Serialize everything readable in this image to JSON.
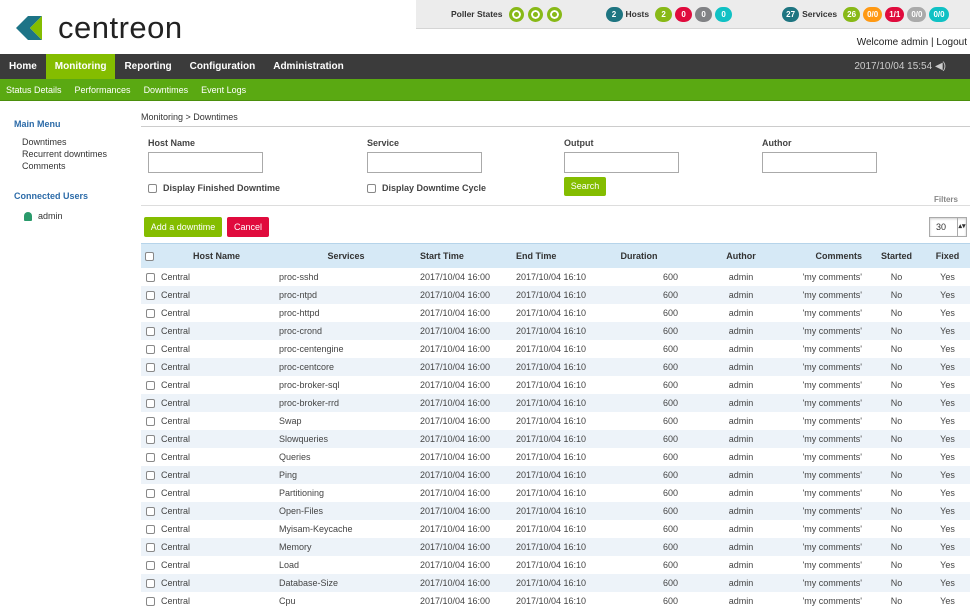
{
  "header": {
    "logo": "centreon",
    "poller_states": "Poller States",
    "hosts": {
      "total": 2,
      "label": "Hosts",
      "states": [
        2,
        0,
        0,
        0
      ]
    },
    "services": {
      "total": 27,
      "label": "Services",
      "states": [
        26,
        "0/0",
        "1/1",
        "0/0",
        "0/0"
      ]
    },
    "welcome": "Welcome admin",
    "logout": "Logout",
    "datetime": "2017/10/04 15:54"
  },
  "nav": {
    "items": [
      "Home",
      "Monitoring",
      "Reporting",
      "Configuration",
      "Administration"
    ],
    "active": 1,
    "subitems": [
      "Status Details",
      "Performances",
      "Downtimes",
      "Event Logs"
    ]
  },
  "sidebar": {
    "main_menu": "Main Menu",
    "items": [
      "Downtimes",
      "Recurrent downtimes",
      "Comments"
    ],
    "connected_users": "Connected Users",
    "users": [
      "admin"
    ]
  },
  "breadcrumb": "Monitoring > Downtimes",
  "filters": {
    "fields": [
      "Host Name",
      "Service",
      "Output",
      "Author"
    ],
    "checkboxes": [
      "Display Finished Downtime",
      "Display Downtime Cycle"
    ],
    "search": "Search",
    "title": "Filters"
  },
  "actions": {
    "add": "Add a downtime",
    "cancel": "Cancel",
    "page_size": 30
  },
  "table": {
    "columns": [
      "Host Name",
      "Services",
      "Start Time",
      "End Time",
      "Duration",
      "Author",
      "Comments",
      "Started",
      "Fixed"
    ],
    "rows": [
      [
        "Central",
        "proc-sshd",
        "2017/10/04 16:00",
        "2017/10/04 16:10",
        600,
        "admin",
        "'my comments'",
        "No",
        "Yes"
      ],
      [
        "Central",
        "proc-ntpd",
        "2017/10/04 16:00",
        "2017/10/04 16:10",
        600,
        "admin",
        "'my comments'",
        "No",
        "Yes"
      ],
      [
        "Central",
        "proc-httpd",
        "2017/10/04 16:00",
        "2017/10/04 16:10",
        600,
        "admin",
        "'my comments'",
        "No",
        "Yes"
      ],
      [
        "Central",
        "proc-crond",
        "2017/10/04 16:00",
        "2017/10/04 16:10",
        600,
        "admin",
        "'my comments'",
        "No",
        "Yes"
      ],
      [
        "Central",
        "proc-centengine",
        "2017/10/04 16:00",
        "2017/10/04 16:10",
        600,
        "admin",
        "'my comments'",
        "No",
        "Yes"
      ],
      [
        "Central",
        "proc-centcore",
        "2017/10/04 16:00",
        "2017/10/04 16:10",
        600,
        "admin",
        "'my comments'",
        "No",
        "Yes"
      ],
      [
        "Central",
        "proc-broker-sql",
        "2017/10/04 16:00",
        "2017/10/04 16:10",
        600,
        "admin",
        "'my comments'",
        "No",
        "Yes"
      ],
      [
        "Central",
        "proc-broker-rrd",
        "2017/10/04 16:00",
        "2017/10/04 16:10",
        600,
        "admin",
        "'my comments'",
        "No",
        "Yes"
      ],
      [
        "Central",
        "Swap",
        "2017/10/04 16:00",
        "2017/10/04 16:10",
        600,
        "admin",
        "'my comments'",
        "No",
        "Yes"
      ],
      [
        "Central",
        "Slowqueries",
        "2017/10/04 16:00",
        "2017/10/04 16:10",
        600,
        "admin",
        "'my comments'",
        "No",
        "Yes"
      ],
      [
        "Central",
        "Queries",
        "2017/10/04 16:00",
        "2017/10/04 16:10",
        600,
        "admin",
        "'my comments'",
        "No",
        "Yes"
      ],
      [
        "Central",
        "Ping",
        "2017/10/04 16:00",
        "2017/10/04 16:10",
        600,
        "admin",
        "'my comments'",
        "No",
        "Yes"
      ],
      [
        "Central",
        "Partitioning",
        "2017/10/04 16:00",
        "2017/10/04 16:10",
        600,
        "admin",
        "'my comments'",
        "No",
        "Yes"
      ],
      [
        "Central",
        "Open-Files",
        "2017/10/04 16:00",
        "2017/10/04 16:10",
        600,
        "admin",
        "'my comments'",
        "No",
        "Yes"
      ],
      [
        "Central",
        "Myisam-Keycache",
        "2017/10/04 16:00",
        "2017/10/04 16:10",
        600,
        "admin",
        "'my comments'",
        "No",
        "Yes"
      ],
      [
        "Central",
        "Memory",
        "2017/10/04 16:00",
        "2017/10/04 16:10",
        600,
        "admin",
        "'my comments'",
        "No",
        "Yes"
      ],
      [
        "Central",
        "Load",
        "2017/10/04 16:00",
        "2017/10/04 16:10",
        600,
        "admin",
        "'my comments'",
        "No",
        "Yes"
      ],
      [
        "Central",
        "Database-Size",
        "2017/10/04 16:00",
        "2017/10/04 16:10",
        600,
        "admin",
        "'my comments'",
        "No",
        "Yes"
      ],
      [
        "Central",
        "Cpu",
        "2017/10/04 16:00",
        "2017/10/04 16:10",
        600,
        "admin",
        "'my comments'",
        "No",
        "Yes"
      ]
    ]
  }
}
